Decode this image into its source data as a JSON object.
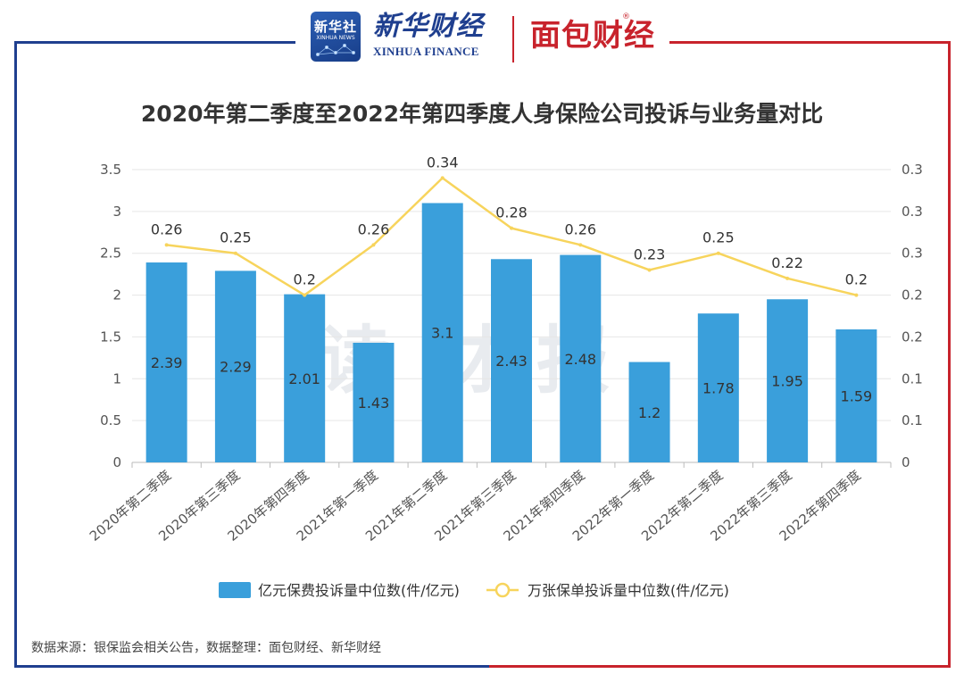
{
  "logos": {
    "xinhuashe_cn": "新华社",
    "xinhuashe_en": "XINHUA NEWS",
    "xinhua_finance_cn": "新华财经",
    "xinhua_finance_en": "XINHUA FINANCE",
    "mianbao_caijing": "面包财经",
    "registered_mark": "®"
  },
  "watermark": "读财报",
  "source_note": "数据来源：银保监会相关公告，数据整理：面包财经、新华财经",
  "colors": {
    "bar": "#3a9fdb",
    "line": "#f7d45c",
    "frame_blue": "#1f3f8f",
    "frame_red": "#c8232c",
    "grid": "#e6e6e6",
    "axis_text": "#555555"
  },
  "chart_data": {
    "type": "bar",
    "title": "2020年第二季度至2022年第四季度人身保险公司投诉与业务量对比",
    "categories": [
      "2020年第二季度",
      "2020年第三季度",
      "2020年第四季度",
      "2021年第一季度",
      "2021年第二季度",
      "2021年第三季度",
      "2021年第四季度",
      "2022年第一季度",
      "2022年第二季度",
      "2022年第三季度",
      "2022年第四季度"
    ],
    "series": [
      {
        "name": "亿元保费投诉量中位数(件/亿元)",
        "type": "bar",
        "axis": "left",
        "values": [
          2.39,
          2.29,
          2.01,
          1.43,
          3.1,
          2.43,
          2.48,
          1.2,
          1.78,
          1.95,
          1.59
        ]
      },
      {
        "name": "万张保单投诉量中位数(件/亿元)",
        "type": "line",
        "axis": "right",
        "values": [
          0.26,
          0.25,
          0.2,
          0.26,
          0.34,
          0.28,
          0.26,
          0.23,
          0.25,
          0.22,
          0.2
        ]
      }
    ],
    "y_left": {
      "min": 0,
      "max": 3.5,
      "ticks": [
        "0",
        "0.5",
        "1",
        "1.5",
        "2",
        "2.5",
        "3",
        "3.5"
      ]
    },
    "y_right": {
      "min": 0,
      "max": 0.35,
      "ticks": [
        "0",
        "0.1",
        "0.1",
        "0.2",
        "0.2",
        "0.3",
        "0.3",
        "0.3"
      ]
    },
    "grid": true,
    "legend": "bottom-center"
  }
}
